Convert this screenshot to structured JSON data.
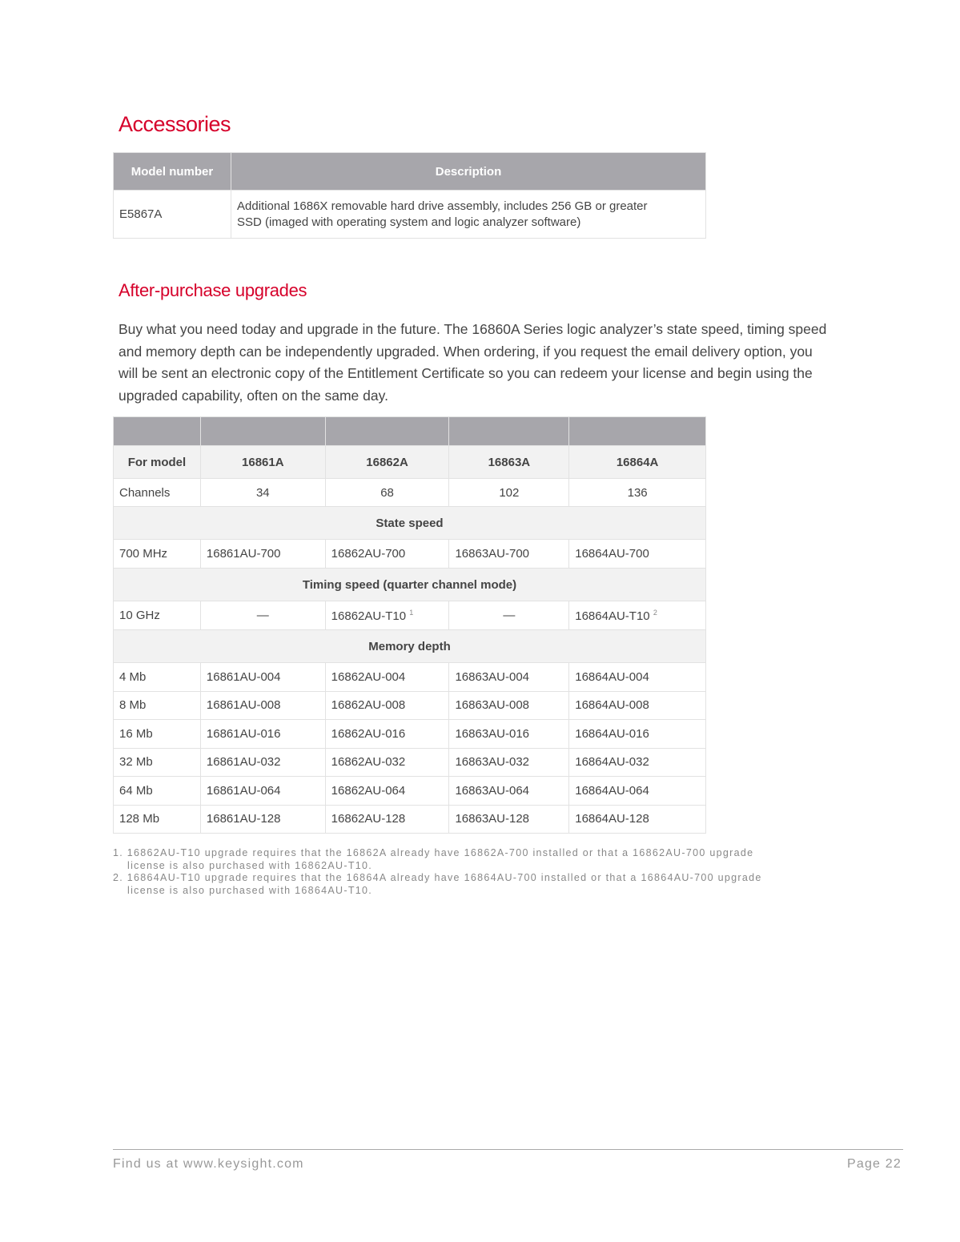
{
  "accessories": {
    "title": "Accessories",
    "headers": [
      "Model number",
      "Description"
    ],
    "rows": [
      {
        "model": "E5867A",
        "desc_line1": "Additional 1686X removable hard drive assembly, includes 256 GB or greater",
        "desc_line2": "SSD (imaged with operating system and logic analyzer software)"
      }
    ]
  },
  "upgrades": {
    "title": "After-purchase upgrades",
    "intro": "Buy what you need today and upgrade in the future. The 16860A Series logic analyzer’s state speed, timing speed and memory depth can be independently upgraded. When ordering, if you request the email delivery option, you will be sent an electronic copy of the Entitlement Certificate so you can redeem your license and begin using the upgraded capability, often on the same day.",
    "header": [
      "For model",
      "16861A",
      "16862A",
      "16863A",
      "16864A"
    ],
    "channels": [
      "Channels",
      "34",
      "68",
      "102",
      "136"
    ],
    "state_title": "State speed",
    "state_row": [
      "700 MHz",
      "16861AU-700",
      "16862AU-700",
      "16863AU-700",
      "16864AU-700"
    ],
    "timing_title": "Timing speed (quarter channel mode)",
    "timing_row": [
      "10 GHz",
      "—",
      "16862AU-T10",
      "—",
      "16864AU-T10"
    ],
    "timing_sup": [
      "1",
      "2"
    ],
    "memory_title": "Memory depth",
    "memory_rows": [
      [
        "4 Mb",
        "16861AU-004",
        "16862AU-004",
        "16863AU-004",
        "16864AU-004"
      ],
      [
        "8 Mb",
        "16861AU-008",
        "16862AU-008",
        "16863AU-008",
        "16864AU-008"
      ],
      [
        "16 Mb",
        "16861AU-016",
        "16862AU-016",
        "16863AU-016",
        "16864AU-016"
      ],
      [
        "32 Mb",
        "16861AU-032",
        "16862AU-032",
        "16863AU-032",
        "16864AU-032"
      ],
      [
        "64 Mb",
        "16861AU-064",
        "16862AU-064",
        "16863AU-064",
        "16864AU-064"
      ],
      [
        "128 Mb",
        "16861AU-128",
        "16862AU-128",
        "16863AU-128",
        "16864AU-128"
      ]
    ],
    "footnotes": [
      {
        "line1": "1. 16862AU-T10 upgrade requires that the 16862A already have 16862A-700 installed or that a 16862AU-700 upgrade",
        "line2": "license is also purchased with 16862AU-T10."
      },
      {
        "line1": "2. 16864AU-T10 upgrade requires that the 16864A already have 16864AU-700 installed or that a 16864AU-700 upgrade",
        "line2": "license is also purchased with 16864AU-T10."
      }
    ]
  },
  "footer": {
    "left": "Find us at www.keysight.com",
    "right": "Page 22"
  },
  "colors": {
    "accent": "#d6002a",
    "header_gray": "#a7a6ab",
    "section_bg": "#f2f2f2"
  }
}
